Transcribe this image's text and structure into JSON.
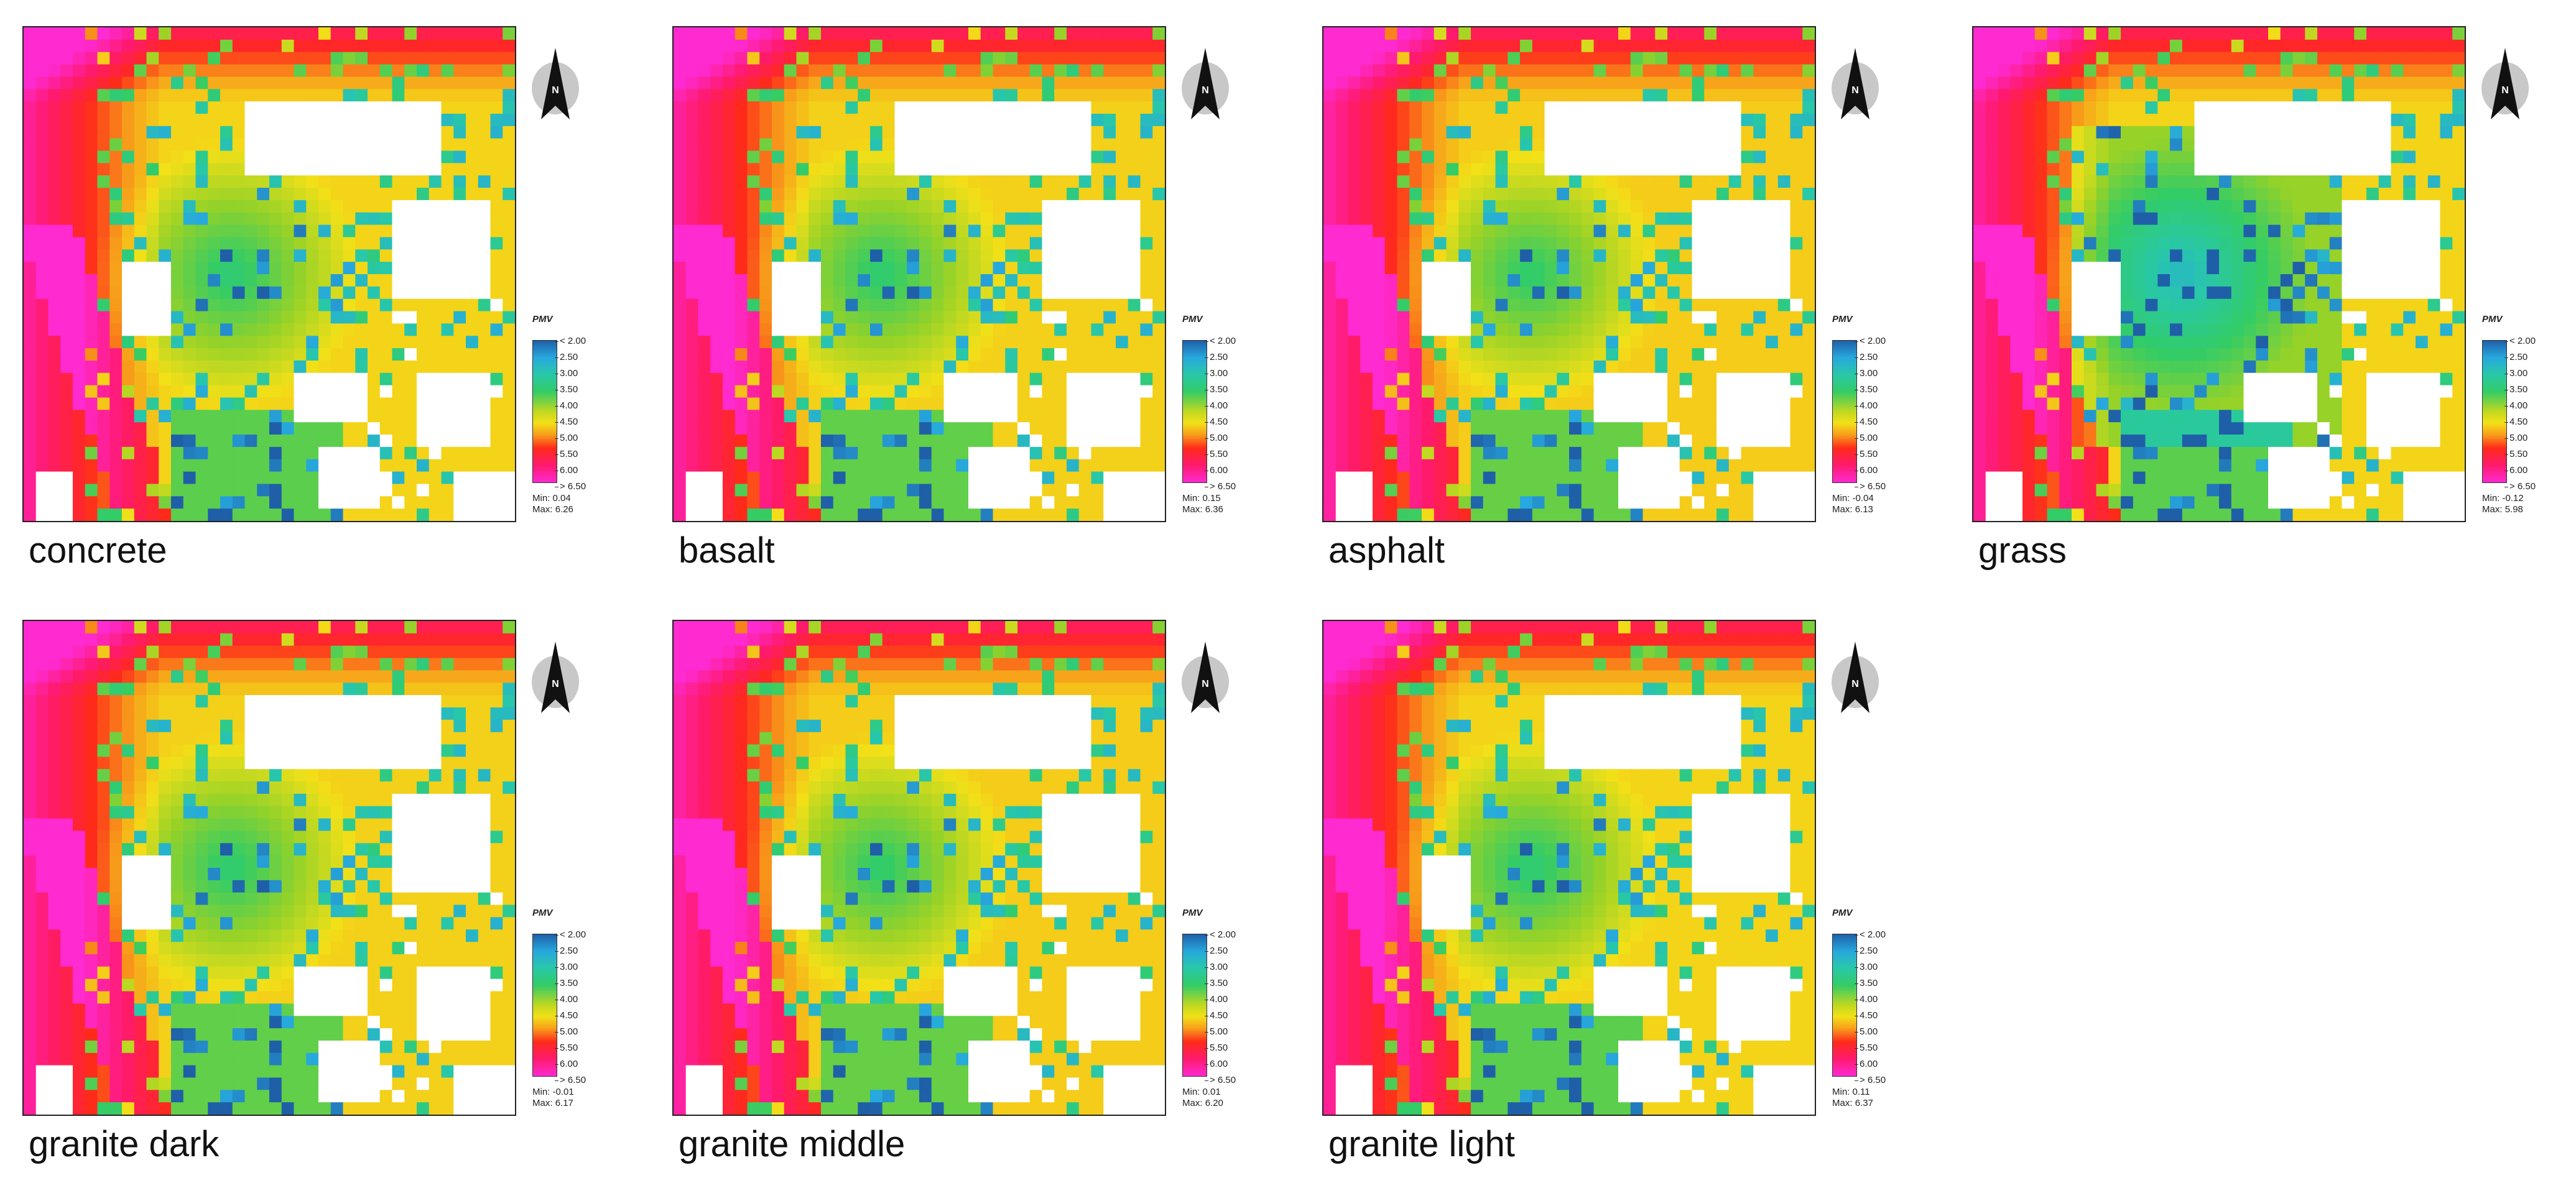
{
  "legend": {
    "title": "PMV",
    "labels": [
      "< 2.00",
      "2.50",
      "3.00",
      "3.50",
      "4.00",
      "4.50",
      "5.00",
      "5.50",
      "6.00",
      "> 6.50"
    ],
    "gradient_colors": [
      "#1f5fa8",
      "#27a8de",
      "#28c8a8",
      "#33cc66",
      "#c0d820",
      "#f2e018",
      "#f7a21a",
      "#ff2a1a",
      "#ff1a6e",
      "#ff2ad0"
    ],
    "min_prefix": "Min:",
    "max_prefix": "Max:"
  },
  "north_arrow": {
    "label": "N",
    "icon": "north-arrow-icon"
  },
  "panels": [
    {
      "material": "concrete",
      "min": "0.04",
      "max": "6.26",
      "variant": "base"
    },
    {
      "material": "basalt",
      "min": "0.15",
      "max": "6.36",
      "variant": "base"
    },
    {
      "material": "asphalt",
      "min": "-0.04",
      "max": "6.13",
      "variant": "base"
    },
    {
      "material": "grass",
      "min": "-0.12",
      "max": "5.98",
      "variant": "cool"
    },
    {
      "material": "granite dark",
      "min": "-0.01",
      "max": "6.17",
      "variant": "base"
    },
    {
      "material": "granite middle",
      "min": "0.01",
      "max": "6.20",
      "variant": "base"
    },
    {
      "material": "granite light",
      "min": "0.11",
      "max": "6.37",
      "variant": "base"
    }
  ]
}
